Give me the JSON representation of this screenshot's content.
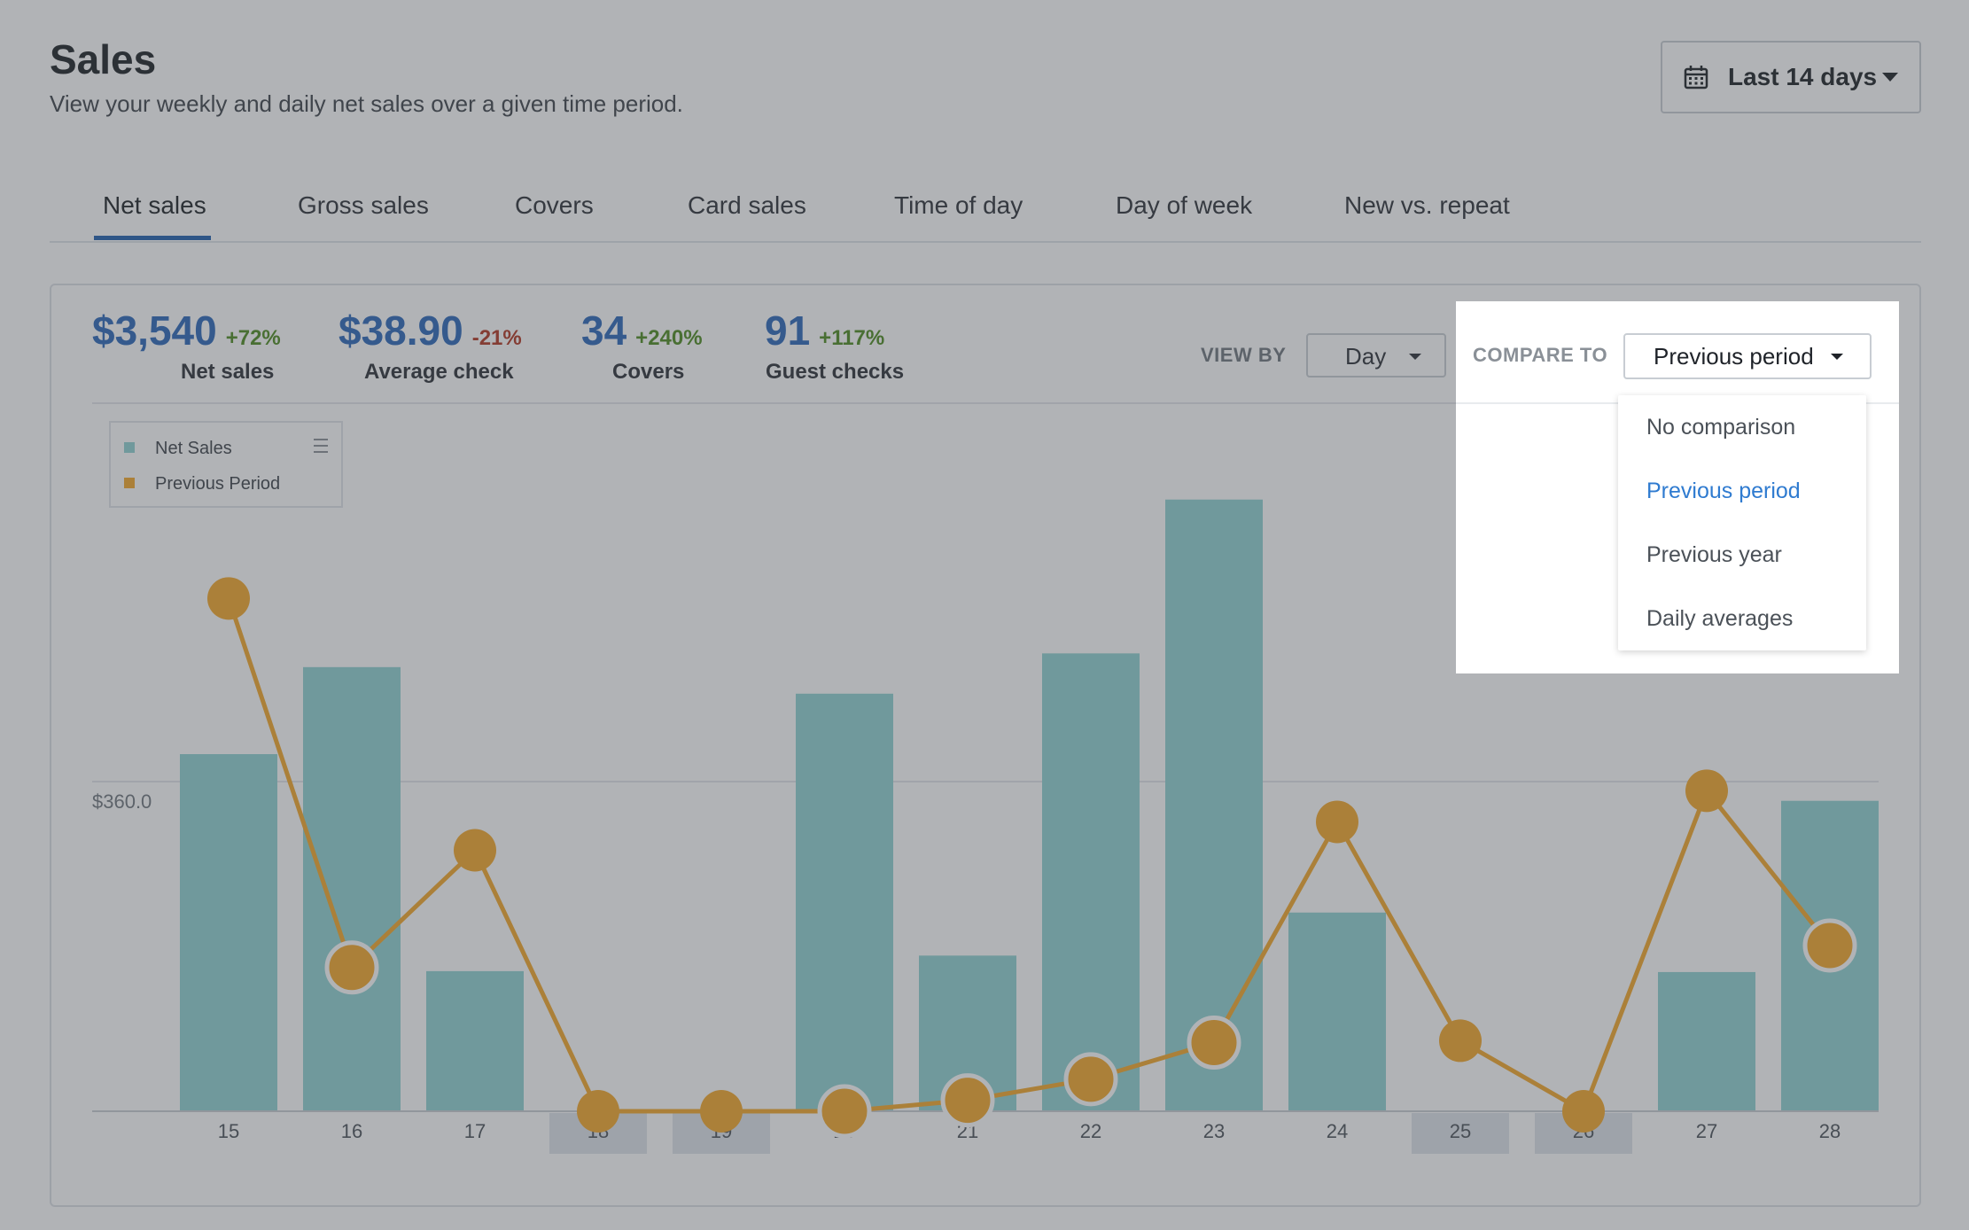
{
  "header": {
    "title": "Sales",
    "subtitle": "View your weekly and daily net sales over a given time period.",
    "date_range": "Last 14 days"
  },
  "tabs": [
    {
      "label": "Net sales",
      "active": true
    },
    {
      "label": "Gross sales"
    },
    {
      "label": "Covers"
    },
    {
      "label": "Card sales"
    },
    {
      "label": "Time of day"
    },
    {
      "label": "Day of week"
    },
    {
      "label": "New vs. repeat"
    }
  ],
  "metrics": [
    {
      "value": "$3,540",
      "change": "+72%",
      "label": "Net sales"
    },
    {
      "value": "$38.90",
      "change": "-21%",
      "label": "Average check"
    },
    {
      "value": "34",
      "change": "+240%",
      "label": "Covers"
    },
    {
      "value": "91",
      "change": "+117%",
      "label": "Guest checks"
    }
  ],
  "controls": {
    "view_by_label": "VIEW BY",
    "view_by_value": "Day",
    "compare_to_label": "COMPARE TO",
    "compare_to_value": "Previous period",
    "compare_options": [
      "No comparison",
      "Previous period",
      "Previous year",
      "Daily averages"
    ],
    "compare_selected_index": 1
  },
  "colors": {
    "accent": "#2a66b8",
    "net_sales": "#8fd3d2",
    "previous_period": "#f5a829",
    "positive": "#4c8a1e",
    "negative": "#b2341f",
    "menu_selected": "#2f7bd0"
  },
  "chart_data": {
    "type": "bar",
    "categories": [
      "15",
      "16",
      "17",
      "18",
      "19",
      "20",
      "21",
      "22",
      "23",
      "24",
      "25",
      "26",
      "27",
      "28"
    ],
    "series": [
      {
        "name": "Net Sales",
        "type": "bar",
        "values": [
          390,
          485,
          153,
          0,
          0,
          456,
          170,
          500,
          668,
          217,
          0,
          0,
          152,
          339
        ]
      },
      {
        "name": "Previous Period",
        "type": "line",
        "values": [
          560,
          157,
          285,
          0,
          0,
          0,
          12,
          35,
          75,
          316,
          77,
          0,
          350,
          181
        ]
      }
    ],
    "y_tick_labels": [
      "$360.0"
    ],
    "highlighted_categories": [
      "18",
      "19",
      "25",
      "26"
    ],
    "legend": [
      "Net Sales",
      "Previous Period"
    ],
    "legend_position": "top-left"
  }
}
